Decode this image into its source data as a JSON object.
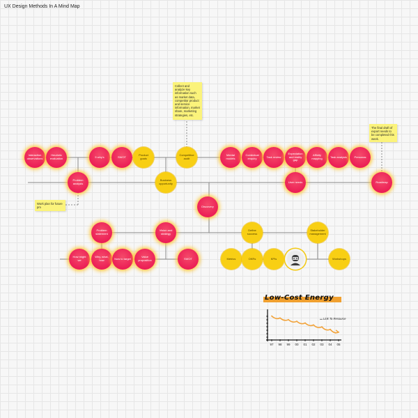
{
  "page_title": "UX Design Methods In A Mind Map",
  "nodes": [
    {
      "id": "n1",
      "label": "Interaction observations",
      "color": "red"
    },
    {
      "id": "n2",
      "label": "Heuristic evaluation",
      "color": "red"
    },
    {
      "id": "n3",
      "label": "5 why's",
      "color": "red"
    },
    {
      "id": "n4",
      "label": "SWOT",
      "color": "red"
    },
    {
      "id": "n5",
      "label": "Product goals",
      "color": "yellow"
    },
    {
      "id": "n6",
      "label": "Competitive audit",
      "color": "yellow"
    },
    {
      "id": "n7",
      "label": "Mental models",
      "color": "red"
    },
    {
      "id": "n8",
      "label": "Contextual enquiry",
      "color": "red"
    },
    {
      "id": "n9",
      "label": "Task review",
      "color": "red"
    },
    {
      "id": "n10",
      "label": "Expectation and reality gap",
      "color": "red"
    },
    {
      "id": "n11",
      "label": "Affinity mapping",
      "color": "red"
    },
    {
      "id": "n12",
      "label": "Task analysis",
      "color": "red"
    },
    {
      "id": "n13",
      "label": "Personas",
      "color": "red"
    },
    {
      "id": "n14",
      "label": "Problem analysis",
      "color": "red"
    },
    {
      "id": "n15",
      "label": "Business opportunity",
      "color": "yellow"
    },
    {
      "id": "n16",
      "label": "User needs",
      "color": "red"
    },
    {
      "id": "n17",
      "label": "Roadmap",
      "color": "red"
    },
    {
      "id": "n18",
      "label": "Discovery",
      "color": "red"
    },
    {
      "id": "n19",
      "label": "Problem statement",
      "color": "red"
    },
    {
      "id": "n20",
      "label": "Vision and strategy",
      "color": "red"
    },
    {
      "id": "n21",
      "label": "Define success",
      "color": "yellow"
    },
    {
      "id": "n22",
      "label": "Stakeholder management",
      "color": "yellow"
    },
    {
      "id": "n23",
      "label": "How might we",
      "color": "red"
    },
    {
      "id": "n24",
      "label": "Why, what, how",
      "color": "red"
    },
    {
      "id": "n25",
      "label": "Now to target",
      "color": "red"
    },
    {
      "id": "n26",
      "label": "Value proposition",
      "color": "red"
    },
    {
      "id": "n27",
      "label": "SWOT",
      "color": "red"
    },
    {
      "id": "n28",
      "label": "Metrics",
      "color": "yellow"
    },
    {
      "id": "n29",
      "label": "OKRs",
      "color": "yellow"
    },
    {
      "id": "n30",
      "label": "KPIs",
      "color": "yellow"
    },
    {
      "id": "n31",
      "label": "",
      "color": "avatar"
    },
    {
      "id": "n32",
      "label": "Workshops",
      "color": "yellow"
    }
  ],
  "stickies": [
    {
      "id": "s1",
      "text": "Collect and analyze key information such as market data, competitor product and service information, market share, marketing strategies, etc."
    },
    {
      "id": "s2",
      "text": "The final draft of export needs to be completed this week."
    },
    {
      "id": "s3",
      "text": "Work plan for future pm"
    }
  ],
  "chart_data": {
    "type": "line",
    "title": "Low-Cost Energy",
    "annotation": "Link To Resource",
    "categories": [
      "97",
      "98",
      "99",
      "00",
      "01",
      "02",
      "03",
      "04",
      "05"
    ],
    "series": [
      {
        "values": [
          8.6,
          7.9,
          7.3,
          6.7,
          6.1,
          5.4,
          4.7,
          3.8,
          2.8
        ]
      }
    ],
    "colors": {
      "line": "#f2a33a",
      "title_highlight": "#f0a030",
      "axis": "#111111"
    }
  }
}
